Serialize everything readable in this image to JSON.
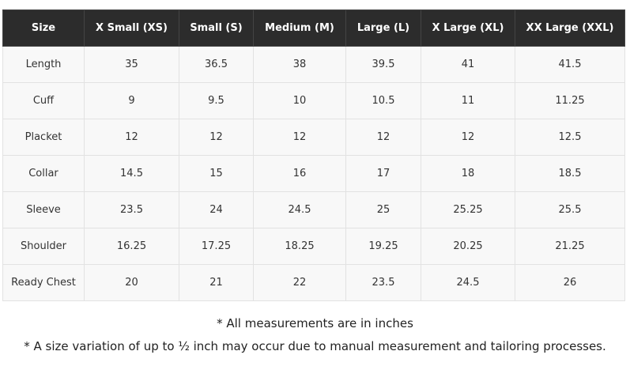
{
  "table": {
    "header": [
      "Size",
      "X Small (XS)",
      "Small (S)",
      "Medium (M)",
      "Large (L)",
      "X Large (XL)",
      "XX Large (XXL)"
    ],
    "rows": [
      [
        "Length",
        "35",
        "36.5",
        "38",
        "39.5",
        "41",
        "41.5"
      ],
      [
        "Cuff",
        "9",
        "9.5",
        "10",
        "10.5",
        "11",
        "11.25"
      ],
      [
        "Placket",
        "12",
        "12",
        "12",
        "12",
        "12",
        "12.5"
      ],
      [
        "Collar",
        "14.5",
        "15",
        "16",
        "17",
        "18",
        "18.5"
      ],
      [
        "Sleeve",
        "23.5",
        "24",
        "24.5",
        "25",
        "25.25",
        "25.5"
      ],
      [
        "Shoulder",
        "16.25",
        "17.25",
        "18.25",
        "19.25",
        "20.25",
        "21.25"
      ],
      [
        "Ready Chest",
        "20",
        "21",
        "22",
        "23.5",
        "24.5",
        "26"
      ]
    ]
  },
  "notes": [
    "* All measurements are in inches",
    "* A size variation of up to ½ inch may occur due to manual measurement and tailoring processes."
  ]
}
